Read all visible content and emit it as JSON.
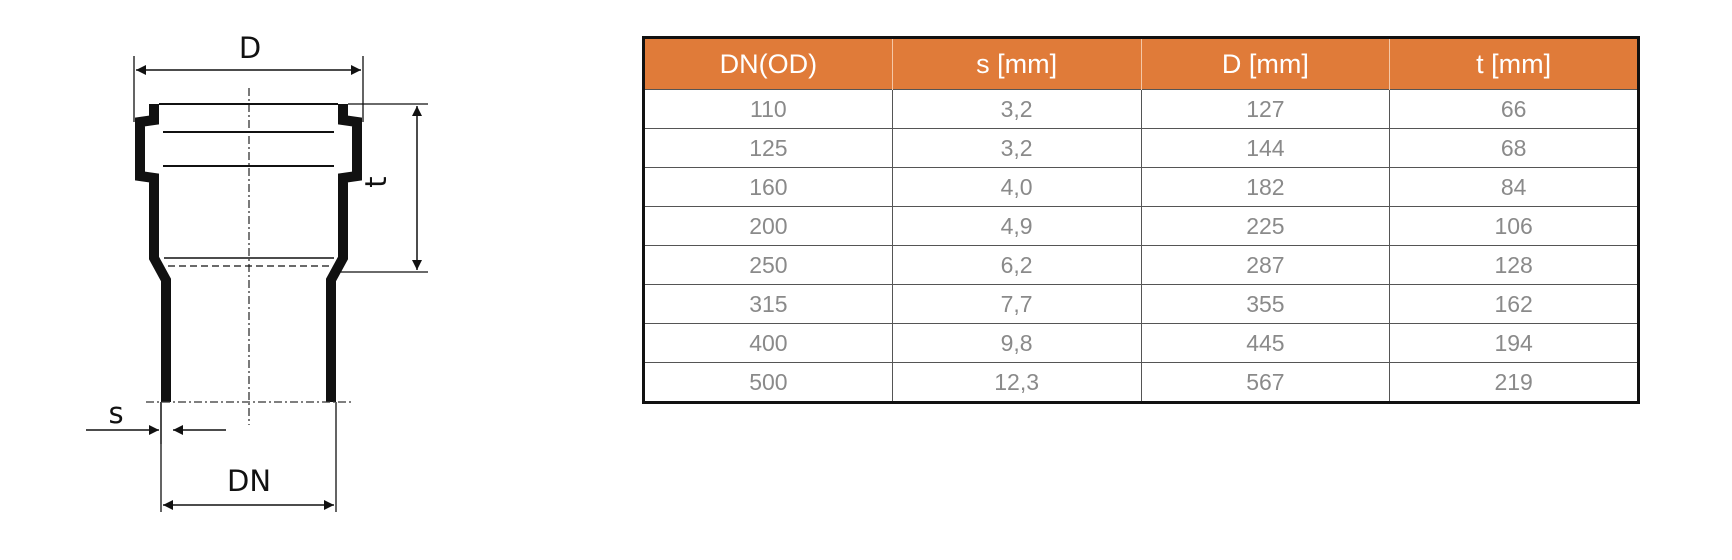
{
  "diagram": {
    "labels": {
      "outer_diameter": "D",
      "socket_depth": "t",
      "wall_thickness": "s",
      "nominal_diameter": "DN"
    }
  },
  "table": {
    "headers": [
      "DN(OD)",
      "s [mm]",
      "D  [mm]",
      "t [mm]"
    ],
    "rows": [
      [
        "110",
        "3,2",
        "127",
        "66"
      ],
      [
        "125",
        "3,2",
        "144",
        "68"
      ],
      [
        "160",
        "4,0",
        "182",
        "84"
      ],
      [
        "200",
        "4,9",
        "225",
        "106"
      ],
      [
        "250",
        "6,2",
        "287",
        "128"
      ],
      [
        "315",
        "7,7",
        "355",
        "162"
      ],
      [
        "400",
        "9,8",
        "445",
        "194"
      ],
      [
        "500",
        "12,3",
        "567",
        "219"
      ]
    ],
    "colors": {
      "header_bg": "#e07b39",
      "header_text": "#ffffff",
      "cell_text": "#8a8a8a"
    }
  }
}
